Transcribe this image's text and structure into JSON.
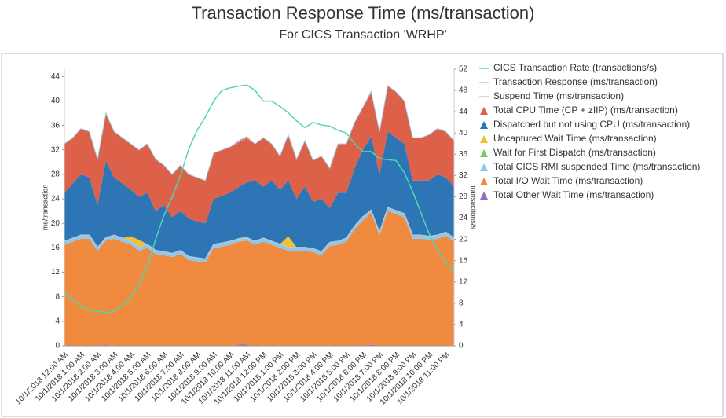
{
  "chart_data": {
    "type": "stacked-area",
    "title": "Transaction Response Time  (ms/transaction)",
    "subtitle": "For CICS Transaction 'WRHP'",
    "ylabel": "ms/transaction",
    "y2label": "transactions/s",
    "categories": [
      "10/1/2018 12:00 AM",
      null,
      "10/1/2018 1:00 AM",
      null,
      "10/1/2018 2:00 AM",
      null,
      "10/1/2018 3:00 AM",
      null,
      "10/1/2018 4:00 AM",
      null,
      "10/1/2018 5:00 AM",
      null,
      "10/1/2018 6:00 AM",
      null,
      "10/1/2018 7:00 AM",
      null,
      "10/1/2018 8:00 AM",
      null,
      "10/1/2018 9:00 AM",
      null,
      "10/1/2018 10:00 AM",
      null,
      "10/1/2018 11:00 AM",
      null,
      "10/1/2018 12:00 PM",
      null,
      "10/1/2018 1:00 PM",
      null,
      "10/1/2018 2:00 PM",
      null,
      "10/1/2018 3:00 PM",
      null,
      "10/1/2018 4:00 PM",
      null,
      "10/1/2018 5:00 PM",
      null,
      "10/1/2018 6:00 PM",
      null,
      "10/1/2018 7:00 PM",
      null,
      "10/1/2018 8:00 PM",
      null,
      "10/1/2018 9:00 PM",
      null,
      "10/1/2018 10:00 PM",
      null,
      "10/1/2018 11:00 PM",
      null
    ],
    "ylim": [
      0,
      45.2
    ],
    "yticks": [
      0,
      4,
      8,
      12,
      16,
      20,
      24,
      28,
      32,
      36,
      40,
      44
    ],
    "y2lim": [
      0,
      52
    ],
    "y2ticks": [
      0,
      4,
      8,
      12,
      16,
      20,
      24,
      28,
      32,
      36,
      40,
      44,
      48,
      52
    ],
    "legend": "right",
    "series": [
      {
        "name": "CICS Transaction Rate (transactions/s)",
        "type": "line",
        "axis": "y2",
        "color": "#4fd6b2",
        "values": [
          10,
          8.7,
          7.5,
          6.7,
          6.5,
          6.2,
          6.5,
          7.5,
          9,
          11.5,
          15,
          20,
          24.5,
          28,
          32,
          37,
          40.5,
          43,
          46,
          48,
          48.5,
          48.8,
          49,
          48,
          46,
          46,
          45,
          43.8,
          42.3,
          41,
          42,
          41.5,
          41.3,
          40.5,
          40,
          38,
          36.5,
          36.5,
          35.2,
          35,
          34.8,
          32.5,
          29,
          25,
          21,
          18,
          15.5,
          14
        ]
      },
      {
        "name": "Transaction Response (ms/transaction)",
        "type": "line",
        "color": "#9fd3ec",
        "values": [
          33,
          34,
          35.5,
          35,
          30.5,
          38,
          35,
          34,
          33,
          32,
          33,
          30.5,
          29.5,
          28,
          29.5,
          28,
          27.5,
          27,
          31.5,
          32,
          32.5,
          33.3,
          34,
          33,
          34,
          33,
          31,
          34.5,
          30.5,
          33.5,
          30.3,
          31,
          29,
          33,
          33,
          36.5,
          39,
          41.5,
          35,
          42.5,
          41.5,
          40,
          34,
          34,
          34.5,
          35.5,
          35,
          33.5
        ]
      },
      {
        "name": "Suspend Time (ms/transaction)",
        "type": "line",
        "color": "#c8c8c8",
        "values": [
          17.1,
          17.6,
          18.1,
          18.1,
          16.1,
          17.6,
          18.1,
          17.6,
          17.1,
          16.1,
          16.6,
          15.6,
          15.4,
          15.1,
          15.6,
          14.6,
          14.4,
          14.2,
          16.6,
          16.8,
          17.1,
          17.4,
          17.6,
          17.1,
          17.6,
          17.1,
          16.6,
          16.1,
          16.1,
          16.1,
          15.9,
          15.4,
          16.9,
          17.1,
          17.6,
          19.6,
          21.1,
          22.1,
          18.6,
          22.6,
          22.1,
          21.6,
          18.1,
          18.1,
          17.9,
          18.1,
          18.6,
          17.6
        ]
      },
      {
        "name": "Total CPU Time (CP + zIIP) (ms/transaction)",
        "type": "area",
        "color": "#dc6148",
        "values": [
          8,
          7.5,
          7.5,
          7.5,
          7.5,
          8,
          7.5,
          7.5,
          7.5,
          7.7,
          8,
          8.5,
          6.5,
          7,
          7.5,
          7.2,
          7.2,
          7,
          7.5,
          7.5,
          7.5,
          7.6,
          7.5,
          6,
          8,
          6,
          5.5,
          7.5,
          6.5,
          7.5,
          6.8,
          7,
          6.5,
          8,
          8,
          7.5,
          7,
          7.5,
          7,
          7.5,
          7.5,
          7,
          7,
          7,
          7.5,
          7.5,
          7.5,
          7.5
        ]
      },
      {
        "name": "Dispatched but not using CPU (ms/transaction)",
        "type": "area",
        "color": "#2e75b6",
        "values": [
          7.9,
          8.9,
          9.9,
          9.4,
          6.9,
          12.4,
          9.4,
          8.9,
          7.6,
          7,
          8.4,
          6.4,
          7.6,
          5.9,
          6.4,
          6.2,
          5.9,
          5.8,
          7.4,
          7.7,
          7.9,
          8.3,
          8.9,
          9.9,
          8.4,
          9.9,
          8.9,
          9.1,
          7.9,
          9.9,
          7.6,
          8.6,
          5.6,
          7.9,
          7.4,
          9.4,
          10.9,
          11.9,
          9.4,
          12.4,
          11.9,
          11.4,
          8.9,
          8.9,
          9.1,
          9.9,
          8.9,
          8.4
        ]
      },
      {
        "name": "Uncaptured Wait Time (ms/transaction)",
        "type": "area",
        "color": "#f2c12e",
        "values": [
          0,
          0,
          0,
          0,
          0,
          0,
          0,
          0,
          0.8,
          1.2,
          0,
          0,
          0,
          0,
          0,
          0,
          0,
          0,
          0,
          0,
          0,
          0,
          0,
          0,
          0,
          0,
          0,
          1.8,
          0,
          0,
          0,
          0,
          0,
          0,
          0,
          0,
          0,
          0,
          0,
          0,
          0,
          0,
          0,
          0,
          0,
          0,
          0,
          0
        ]
      },
      {
        "name": "Wait for First Dispatch (ms/transaction)",
        "type": "area",
        "color": "#7dc962",
        "values": [
          0,
          0,
          0,
          0,
          0,
          0,
          0,
          0,
          0,
          0,
          0,
          0,
          0,
          0,
          0,
          0,
          0,
          0,
          0,
          0,
          0,
          0,
          0,
          0,
          0,
          0,
          0,
          0,
          0,
          0,
          0,
          0,
          0,
          0,
          0,
          0,
          0,
          0,
          0,
          0,
          0,
          0,
          0,
          0,
          0,
          0,
          0,
          0
        ]
      },
      {
        "name": "Total CICS RMI suspended Time (ms/transaction)",
        "type": "area",
        "color": "#8cc8ee",
        "values": [
          0.6,
          0.6,
          0.6,
          0.6,
          0.6,
          0.6,
          0.6,
          0.6,
          0.6,
          0.6,
          0.6,
          0.6,
          0.6,
          0.6,
          0.6,
          0.6,
          0.6,
          0.6,
          0.6,
          0.6,
          0.6,
          0.6,
          0.6,
          0.6,
          0.6,
          0.6,
          0.6,
          0.6,
          0.6,
          0.6,
          0.6,
          0.6,
          0.6,
          0.6,
          0.6,
          0.6,
          0.6,
          0.6,
          0.6,
          0.6,
          0.6,
          0.6,
          0.6,
          0.6,
          0.6,
          0.6,
          0.6,
          0.6
        ]
      },
      {
        "name": "Total I/O Wait Time (ms/transaction)",
        "type": "area",
        "color": "#ef8a3e",
        "values": [
          16.5,
          17,
          17.5,
          17.5,
          15.5,
          17,
          17.5,
          17,
          16.5,
          15.5,
          16,
          15,
          14.8,
          14.5,
          15,
          14,
          13.8,
          13.6,
          16,
          16.2,
          16.5,
          16.8,
          17,
          16.5,
          17,
          16.5,
          16,
          15.5,
          15.5,
          15.5,
          15.3,
          14.8,
          16.3,
          16.5,
          17,
          19,
          20.5,
          21.5,
          18,
          22,
          21.5,
          21,
          17.5,
          17.5,
          17.3,
          17.5,
          18,
          17
        ]
      },
      {
        "name": "Total Other Wait Time (ms/transaction)",
        "type": "area",
        "color": "#8e6fc1",
        "values": [
          0,
          0,
          0,
          0,
          0,
          0.2,
          0,
          0,
          0,
          0,
          0,
          0,
          0,
          0,
          0,
          0,
          0,
          0,
          0,
          0,
          0,
          0.2,
          0.2,
          0,
          0,
          0,
          0,
          0,
          0,
          0,
          0,
          0,
          0,
          0,
          0,
          0,
          0,
          0.2,
          0,
          0,
          0,
          0,
          0,
          0,
          0,
          0,
          0,
          0
        ]
      }
    ]
  }
}
